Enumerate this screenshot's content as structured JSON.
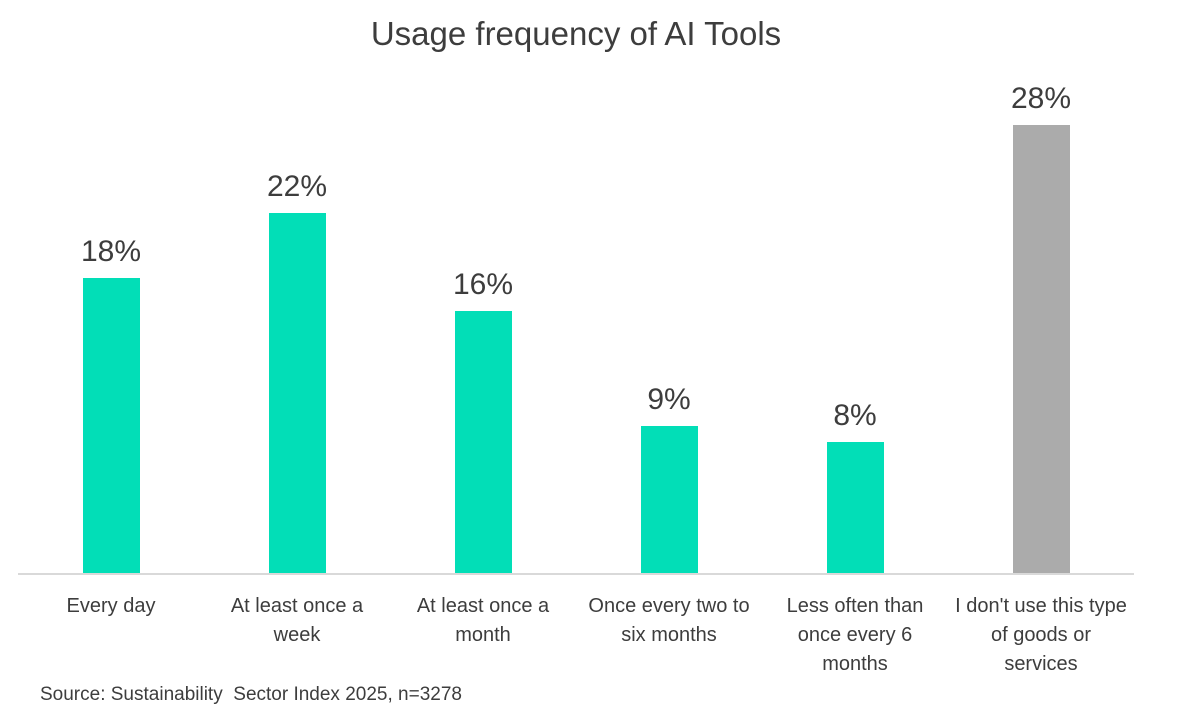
{
  "chart_data": {
    "type": "bar",
    "title": "Usage frequency of AI Tools",
    "categories": [
      "Every day",
      "At least once a week",
      "At least once a month",
      "Once every two to six months",
      "Less often than once every 6 months",
      "I don't use this type of goods or services"
    ],
    "values": [
      18,
      22,
      16,
      9,
      8,
      28
    ],
    "value_labels": [
      "18%",
      "22%",
      "16%",
      "9%",
      "8%",
      "28%"
    ],
    "bar_colors": [
      "#02deb7",
      "#02deb7",
      "#02deb7",
      "#02deb7",
      "#02deb7",
      "#ababab"
    ],
    "accent_color": "#02deb7",
    "muted_color": "#ababab",
    "axis_line_color": "#d9d9d9",
    "text_color": "#3d3d3d",
    "ylim": [
      0,
      30
    ],
    "grid": false,
    "legend": false,
    "xlabel": "",
    "ylabel": "",
    "source_note": "Source: Sustainability  Sector Index 2025, n=3278"
  }
}
